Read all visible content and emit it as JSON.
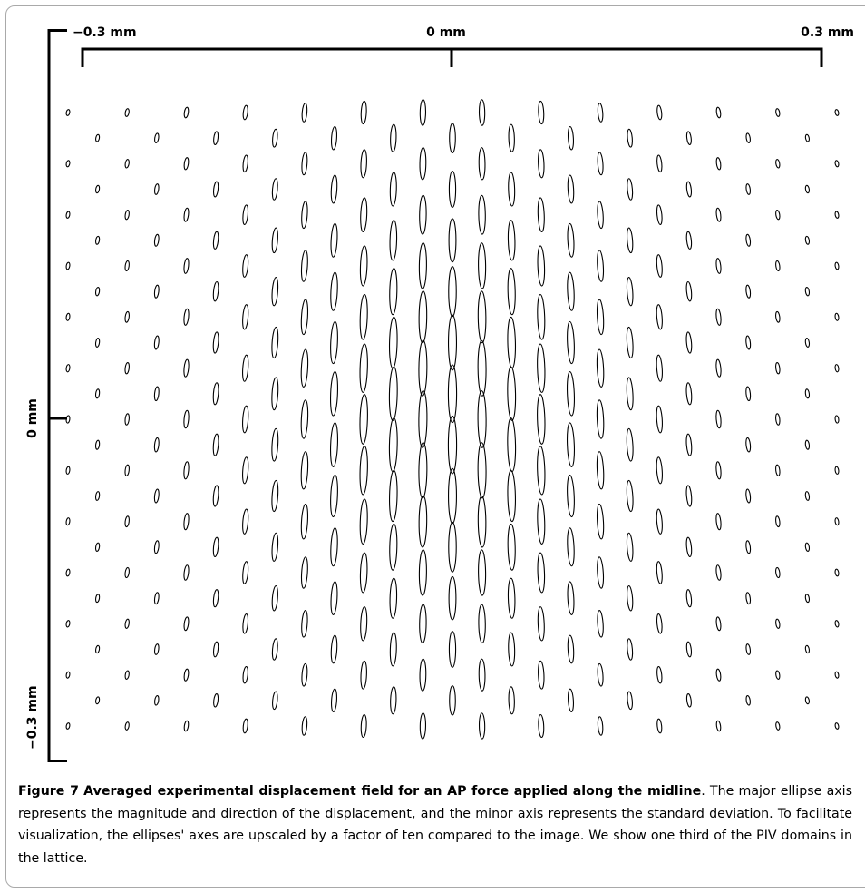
{
  "figure": {
    "axis_labels": {
      "x_left": "−0.3 mm",
      "x_center": "0 mm",
      "x_right": "0.3 mm",
      "y_center": "0 mm",
      "y_bottom": "−0.3 mm"
    },
    "lattice": {
      "columns": 27,
      "rows": 25,
      "note_ellipses": "major axis = displacement magnitude/direction, minor axis = standard deviation"
    }
  },
  "caption": {
    "label": "Figure 7",
    "title": "Averaged experimental displacement field for an AP force applied along the midline",
    "body": ". The major ellipse axis represents the magnitude and direction of the displacement, and the minor axis represents the standard deviation. To facilitate visualization, the ellipses' axes are upscaled by a factor of ten compared to the image. We show one third of the PIV domains in the lattice."
  },
  "colors": {
    "frame": "#a9a9a9",
    "ink": "#000000"
  }
}
